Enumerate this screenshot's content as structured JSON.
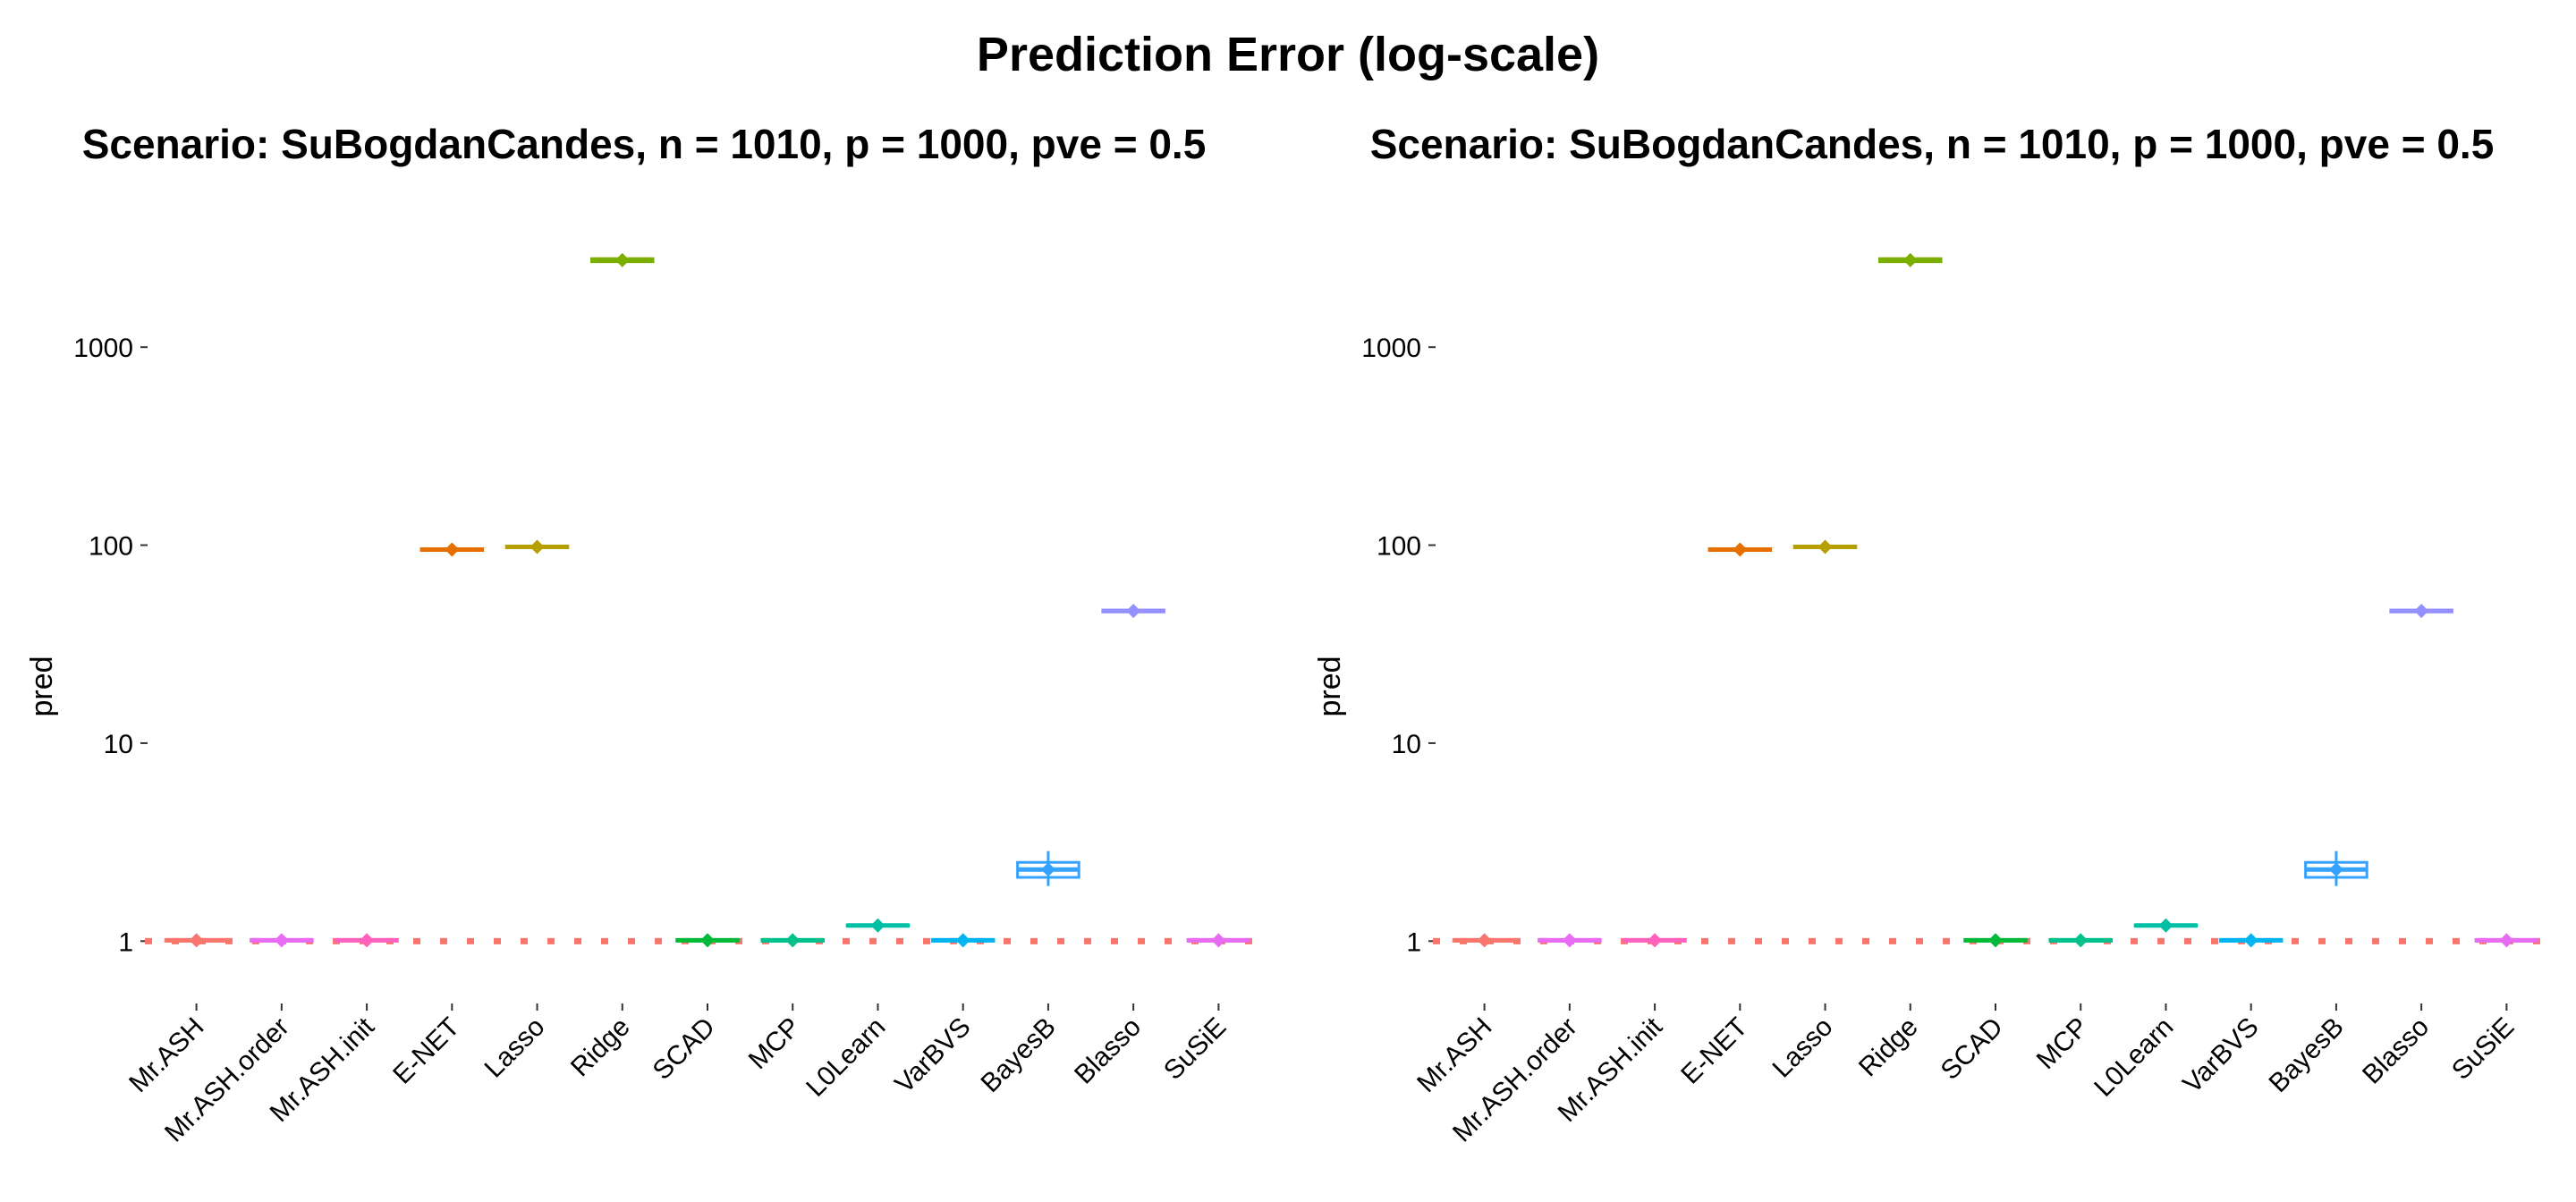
{
  "figure": {
    "title": "Prediction Error (log-scale)"
  },
  "chart_data": [
    {
      "type": "boxplot",
      "title": "Scenario: SuBogdanCandes, n = 1010, p = 1000, pve = 0.5",
      "xlabel": "",
      "ylabel": "pred",
      "y_scale": "log10",
      "ylim": [
        0.75,
        3600
      ],
      "y_ticks": [
        1,
        10,
        100,
        1000
      ],
      "y_tick_labels": [
        "1",
        "10",
        "100",
        "1000"
      ],
      "grid": false,
      "reference_line": {
        "y": 1,
        "style": "dotted",
        "color": "#F8766D"
      },
      "categories": [
        "Mr.ASH",
        "Mr.ASH.order",
        "Mr.ASH.init",
        "E-NET",
        "Lasso",
        "Ridge",
        "SCAD",
        "MCP",
        "L0Learn",
        "VarBVS",
        "BayesB",
        "Blasso",
        "SuSiE"
      ],
      "colors": [
        "#F8766D",
        "#E76BF3",
        "#FF62BC",
        "#E76F00",
        "#B79F00",
        "#7CAE00",
        "#00BA38",
        "#00C08B",
        "#00BFA5",
        "#00B4F0",
        "#35A2FF",
        "#9590FF",
        "#E76BF3"
      ],
      "boxes": [
        {
          "min": 1.0,
          "q1": 1.0,
          "median": 1.01,
          "q3": 1.02,
          "max": 1.03,
          "mean": 1.01
        },
        {
          "min": 1.0,
          "q1": 1.0,
          "median": 1.01,
          "q3": 1.02,
          "max": 1.03,
          "mean": 1.01
        },
        {
          "min": 1.0,
          "q1": 1.0,
          "median": 1.01,
          "q3": 1.02,
          "max": 1.03,
          "mean": 1.01
        },
        {
          "min": 93,
          "q1": 94,
          "median": 95,
          "q3": 96,
          "max": 97,
          "mean": 95
        },
        {
          "min": 96,
          "q1": 97,
          "median": 98,
          "q3": 99,
          "max": 100,
          "mean": 98
        },
        {
          "min": 2650,
          "q1": 2700,
          "median": 2750,
          "q3": 2800,
          "max": 2850,
          "mean": 2750
        },
        {
          "min": 1.0,
          "q1": 1.0,
          "median": 1.01,
          "q3": 1.02,
          "max": 1.03,
          "mean": 1.01
        },
        {
          "min": 1.0,
          "q1": 1.0,
          "median": 1.01,
          "q3": 1.02,
          "max": 1.03,
          "mean": 1.01
        },
        {
          "min": 1.17,
          "q1": 1.19,
          "median": 1.2,
          "q3": 1.21,
          "max": 1.23,
          "mean": 1.2
        },
        {
          "min": 1.0,
          "q1": 1.0,
          "median": 1.01,
          "q3": 1.02,
          "max": 1.03,
          "mean": 1.01
        },
        {
          "min": 1.9,
          "q1": 2.1,
          "median": 2.3,
          "q3": 2.5,
          "max": 2.85,
          "mean": 2.3
        },
        {
          "min": 45,
          "q1": 46,
          "median": 46.5,
          "q3": 47,
          "max": 48,
          "mean": 46.5
        },
        {
          "min": 1.0,
          "q1": 1.0,
          "median": 1.01,
          "q3": 1.02,
          "max": 1.03,
          "mean": 1.01
        }
      ]
    },
    {
      "type": "boxplot",
      "title": "Scenario: SuBogdanCandes, n = 1010, p = 1000, pve = 0.5",
      "xlabel": "",
      "ylabel": "pred",
      "y_scale": "log10",
      "ylim": [
        0.75,
        3600
      ],
      "y_ticks": [
        1,
        10,
        100,
        1000
      ],
      "y_tick_labels": [
        "1",
        "10",
        "100",
        "1000"
      ],
      "grid": false,
      "reference_line": {
        "y": 1,
        "style": "dotted",
        "color": "#F8766D"
      },
      "categories": [
        "Mr.ASH",
        "Mr.ASH.order",
        "Mr.ASH.init",
        "E-NET",
        "Lasso",
        "Ridge",
        "SCAD",
        "MCP",
        "L0Learn",
        "VarBVS",
        "BayesB",
        "Blasso",
        "SuSiE"
      ],
      "colors": [
        "#F8766D",
        "#E76BF3",
        "#FF62BC",
        "#E76F00",
        "#B79F00",
        "#7CAE00",
        "#00BA38",
        "#00C08B",
        "#00BFA5",
        "#00B4F0",
        "#35A2FF",
        "#9590FF",
        "#E76BF3"
      ],
      "boxes": [
        {
          "min": 1.0,
          "q1": 1.0,
          "median": 1.01,
          "q3": 1.02,
          "max": 1.03,
          "mean": 1.01
        },
        {
          "min": 1.0,
          "q1": 1.0,
          "median": 1.01,
          "q3": 1.02,
          "max": 1.03,
          "mean": 1.01
        },
        {
          "min": 1.0,
          "q1": 1.0,
          "median": 1.01,
          "q3": 1.02,
          "max": 1.03,
          "mean": 1.01
        },
        {
          "min": 93,
          "q1": 94,
          "median": 95,
          "q3": 96,
          "max": 97,
          "mean": 95
        },
        {
          "min": 96,
          "q1": 97,
          "median": 98,
          "q3": 99,
          "max": 100,
          "mean": 98
        },
        {
          "min": 2650,
          "q1": 2700,
          "median": 2750,
          "q3": 2800,
          "max": 2850,
          "mean": 2750
        },
        {
          "min": 1.0,
          "q1": 1.0,
          "median": 1.01,
          "q3": 1.02,
          "max": 1.03,
          "mean": 1.01
        },
        {
          "min": 1.0,
          "q1": 1.0,
          "median": 1.01,
          "q3": 1.02,
          "max": 1.03,
          "mean": 1.01
        },
        {
          "min": 1.17,
          "q1": 1.19,
          "median": 1.2,
          "q3": 1.21,
          "max": 1.23,
          "mean": 1.2
        },
        {
          "min": 1.0,
          "q1": 1.0,
          "median": 1.01,
          "q3": 1.02,
          "max": 1.03,
          "mean": 1.01
        },
        {
          "min": 1.9,
          "q1": 2.1,
          "median": 2.3,
          "q3": 2.5,
          "max": 2.85,
          "mean": 2.3
        },
        {
          "min": 45,
          "q1": 46,
          "median": 46.5,
          "q3": 47,
          "max": 48,
          "mean": 46.5
        },
        {
          "min": 1.0,
          "q1": 1.0,
          "median": 1.01,
          "q3": 1.02,
          "max": 1.03,
          "mean": 1.01
        }
      ]
    }
  ]
}
